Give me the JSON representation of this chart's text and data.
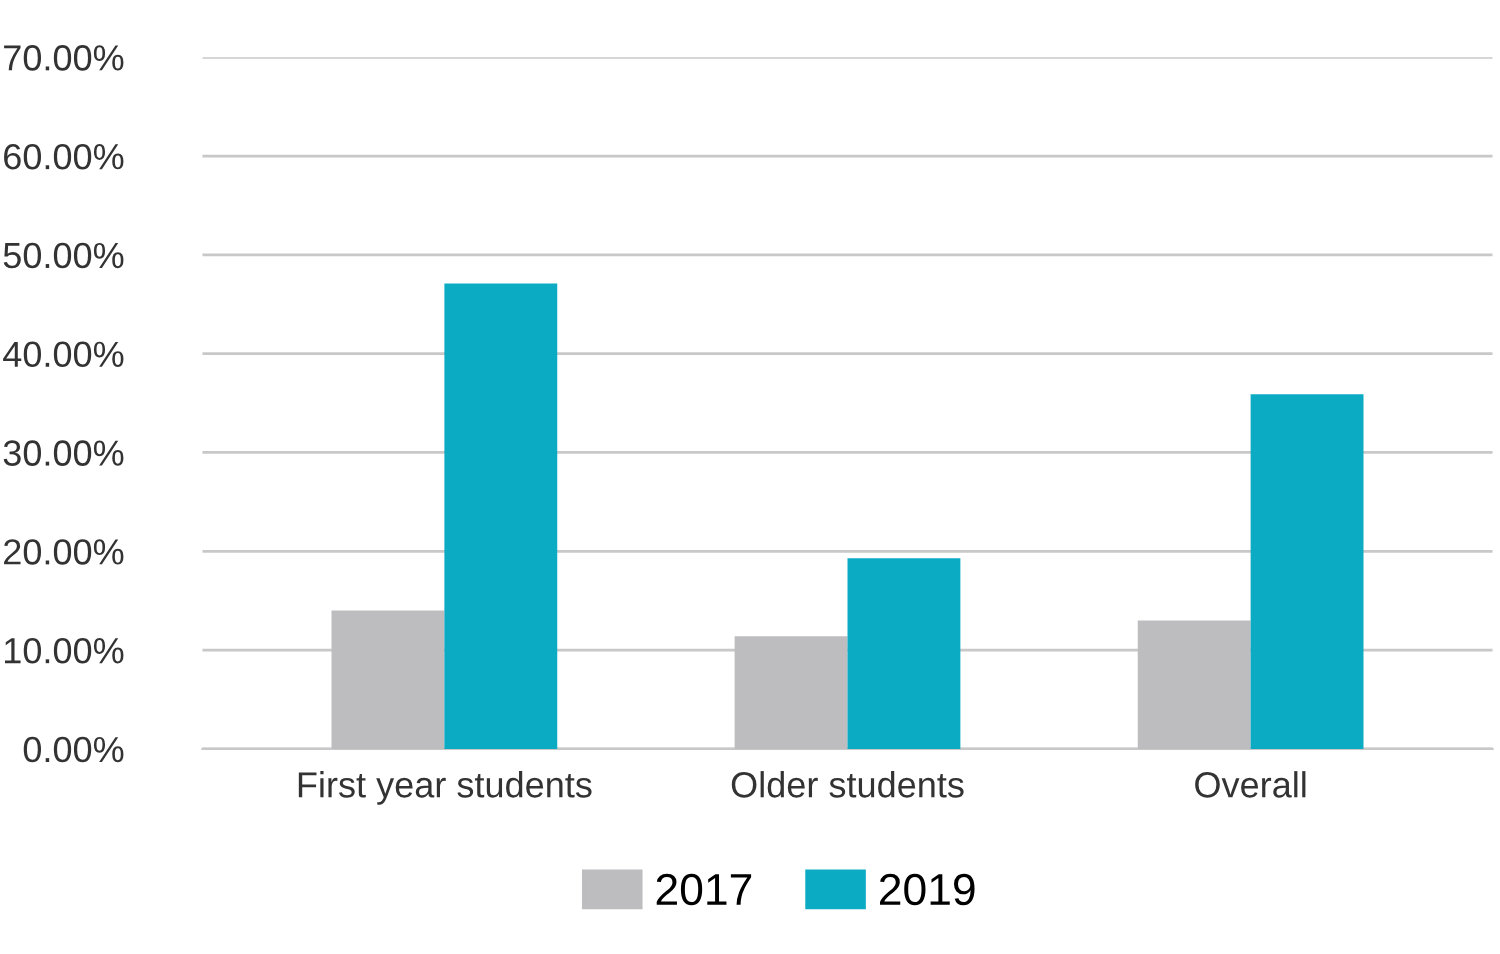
{
  "chart_data": {
    "type": "bar",
    "categories": [
      "First year students",
      "Older students",
      "Overall"
    ],
    "series": [
      {
        "name": "2017",
        "color": "#bdbdbf",
        "values": [
          14.0,
          11.4,
          13.0
        ]
      },
      {
        "name": "2019",
        "color": "#0cabc4",
        "values": [
          47.1,
          19.3,
          35.9
        ]
      }
    ],
    "ylim": [
      0,
      70
    ],
    "yticks": [
      {
        "value": 0,
        "label": "0.00%"
      },
      {
        "value": 10,
        "label": "10.00%"
      },
      {
        "value": 20,
        "label": "20.00%"
      },
      {
        "value": 30,
        "label": "30.00%"
      },
      {
        "value": 40,
        "label": "40.00%"
      },
      {
        "value": 50,
        "label": "50.00%"
      },
      {
        "value": 60,
        "label": "60.00%"
      },
      {
        "value": 70,
        "label": "70.00%"
      }
    ],
    "grid": "y",
    "legend": "bottom"
  }
}
